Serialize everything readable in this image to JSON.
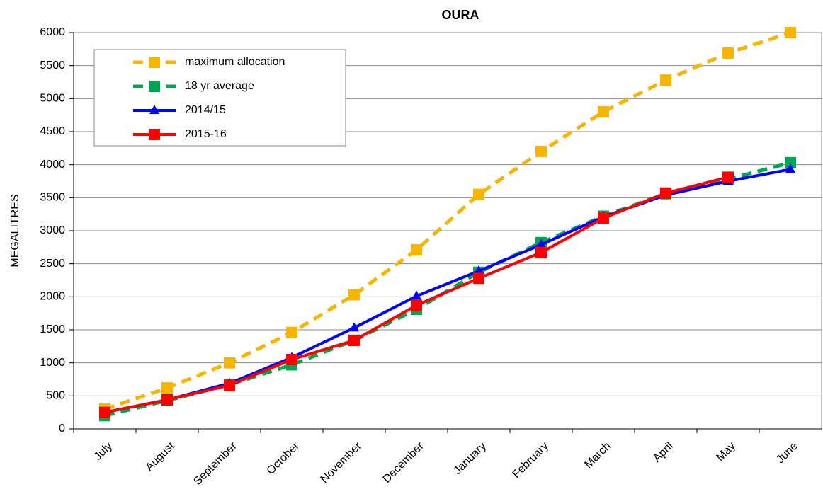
{
  "chart_data": {
    "type": "line",
    "title": "OURA",
    "y_label": "MEGALITRES",
    "categories": [
      "July",
      "August",
      "September",
      "October",
      "November",
      "December",
      "January",
      "February",
      "March",
      "April",
      "May",
      "June"
    ],
    "series": [
      {
        "name": "maximum allocation",
        "color": "#f7b500",
        "dashed": true,
        "marker": "square",
        "values": [
          300,
          620,
          1000,
          1460,
          2030,
          2710,
          3550,
          4200,
          4800,
          5280,
          5690,
          6000
        ]
      },
      {
        "name": "18 yr average",
        "color": "#00a651",
        "dashed": true,
        "marker": "square",
        "values": [
          200,
          430,
          670,
          970,
          1340,
          1810,
          2370,
          2820,
          3220,
          3560,
          3780,
          4030
        ]
      },
      {
        "name": "2014/15",
        "color": "#0000ff",
        "dashed": false,
        "marker": "triangle",
        "values": [
          250,
          440,
          690,
          1080,
          1530,
          2010,
          2390,
          2790,
          3210,
          3540,
          3750,
          3930
        ]
      },
      {
        "name": "2015-16",
        "color": "#ff0000",
        "dashed": false,
        "marker": "square",
        "values": [
          250,
          440,
          660,
          1050,
          1340,
          1870,
          2280,
          2670,
          3190,
          3570,
          3810,
          null
        ]
      }
    ],
    "ylim": [
      0,
      6000
    ],
    "yticks": [
      0,
      500,
      1000,
      1500,
      2000,
      2500,
      3000,
      3500,
      4000,
      4500,
      5000,
      5500,
      6000
    ],
    "grid": true,
    "legend": "upper left"
  }
}
